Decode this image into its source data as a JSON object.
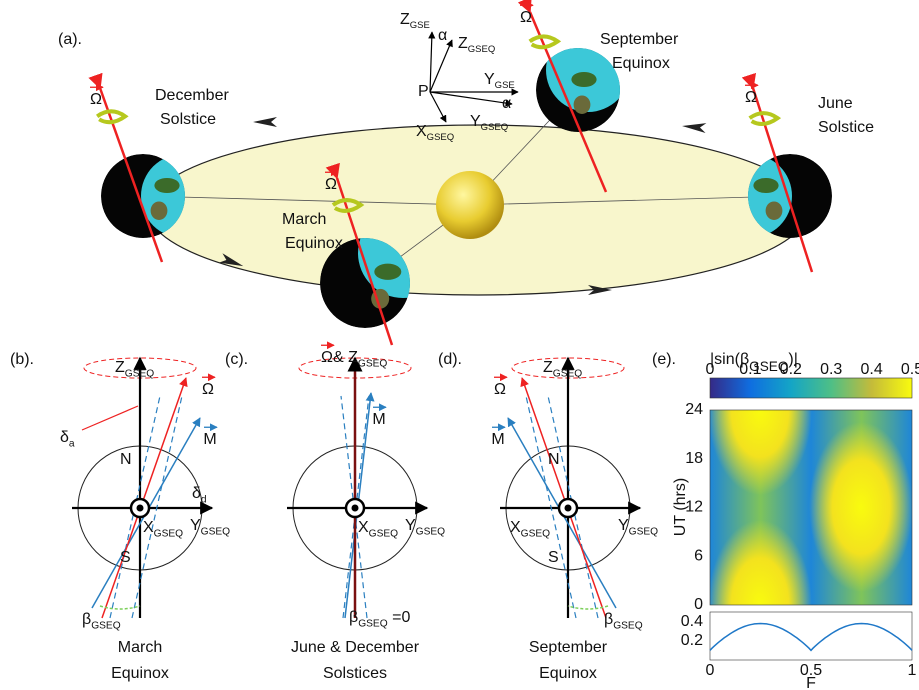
{
  "panel_a": {
    "label": "(a).",
    "december": [
      "December",
      "Solstice"
    ],
    "march": [
      "March",
      "Equinox"
    ],
    "september": [
      "September",
      "Equinox"
    ],
    "june": [
      "June",
      "Solstice"
    ],
    "omega": "Ω",
    "alpha": "α",
    "p": "P",
    "z_gse": {
      "main": "Z",
      "sub": "GSE"
    },
    "z_gseq": {
      "main": "Z",
      "sub": "GSEQ"
    },
    "y_gse": {
      "main": "Y",
      "sub": "GSE"
    },
    "y_gseq": {
      "main": "Y",
      "sub": "GSEQ"
    },
    "x_gseq": {
      "main": "X",
      "sub": "GSEQ"
    }
  },
  "panel_b": {
    "label": "(b).",
    "z": {
      "main": "Z",
      "sub": "GSEQ"
    },
    "omega": "Ω",
    "m": "M",
    "n": "N",
    "s": "S",
    "delta_a": {
      "main": "δ",
      "sub": "a"
    },
    "delta_d": {
      "main": "δ",
      "sub": "d"
    },
    "x": {
      "main": "X",
      "sub": "GSEQ"
    },
    "y": {
      "main": "Y",
      "sub": "GSEQ"
    },
    "beta": {
      "main": "β",
      "sub": "GSEQ"
    },
    "caption": [
      "March",
      "Equinox"
    ]
  },
  "panel_c": {
    "label": "(c).",
    "omega": "Ω",
    "and_z": {
      "main": " & Z",
      "sub": "GSEQ"
    },
    "m": "M",
    "x": {
      "main": "X",
      "sub": "GSEQ"
    },
    "y": {
      "main": "Y",
      "sub": "GSEQ"
    },
    "beta": {
      "main": "β",
      "sub": "GSEQ",
      "tail": " =0"
    },
    "caption": [
      "June & December",
      "Solstices"
    ]
  },
  "panel_d": {
    "label": "(d).",
    "z": {
      "main": "Z",
      "sub": "GSEQ"
    },
    "omega": "Ω",
    "m": "M",
    "n": "N",
    "s": "S",
    "x": {
      "main": "X",
      "sub": "GSEQ"
    },
    "y": {
      "main": "Y",
      "sub": "GSEQ"
    },
    "beta": {
      "main": "β",
      "sub": "GSEQ"
    },
    "caption": [
      "September",
      "Equinox"
    ]
  },
  "panel_e": {
    "label": "(e).",
    "title": {
      "pre": "|sin(β",
      "sub": "GSEQ",
      "post": ")|"
    },
    "colorbar_ticks": [
      0,
      0.1,
      0.2,
      0.3,
      0.4,
      0.5
    ],
    "ut_ticks": [
      0,
      6,
      12,
      18,
      24
    ],
    "y_label": "UT (hrs)",
    "line_ticks": [
      0.2,
      0.4
    ],
    "x_ticks": [
      0,
      0.5,
      1
    ],
    "x_label": "F"
  }
}
